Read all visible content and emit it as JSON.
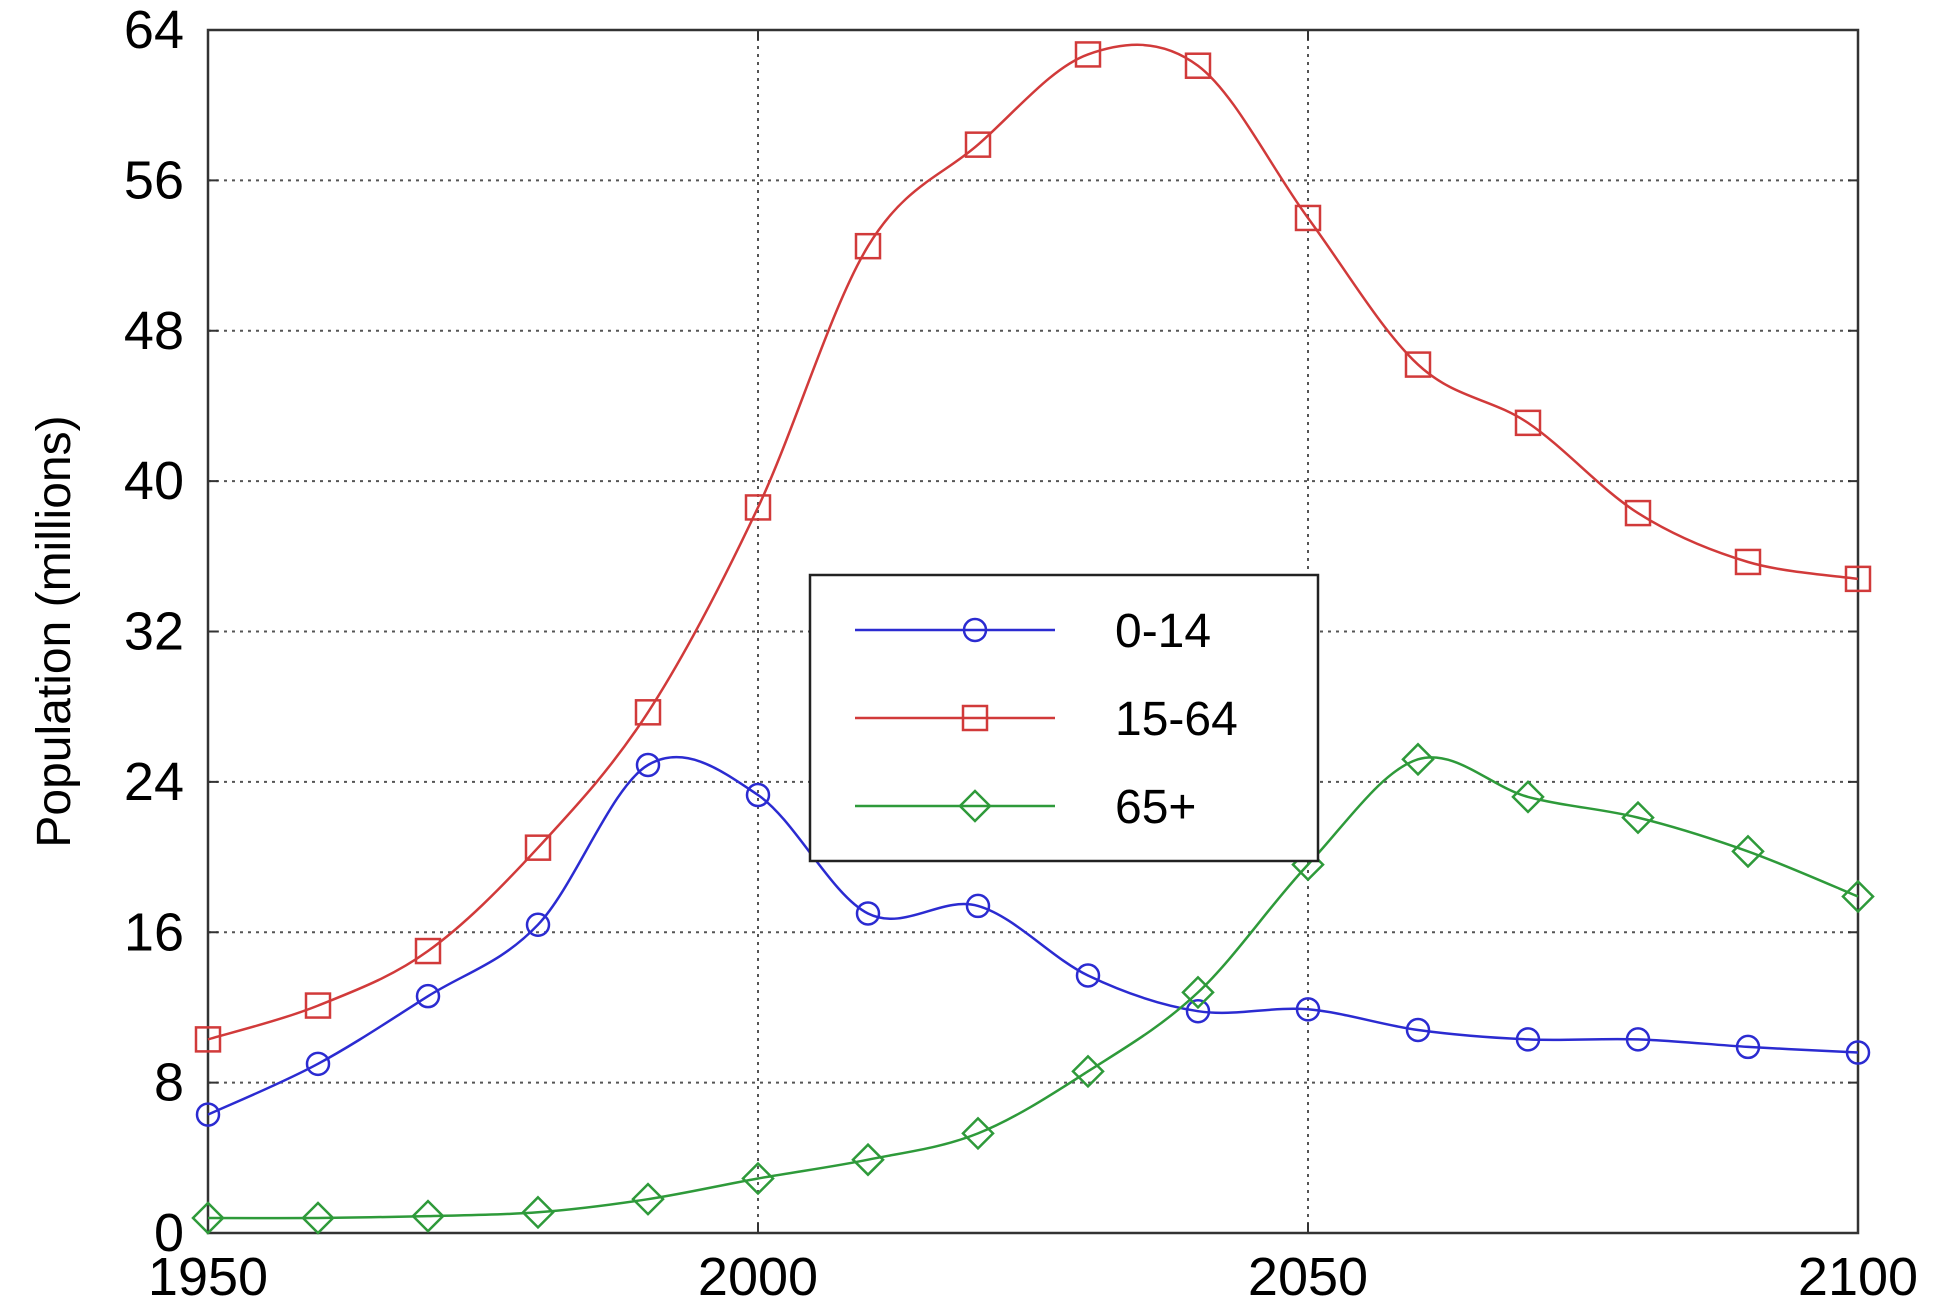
{
  "chart_data": {
    "type": "line",
    "title": "",
    "xlabel": "",
    "ylabel": "Population (millions)",
    "xlim": [
      1950,
      2100
    ],
    "ylim": [
      0,
      64
    ],
    "x_ticks": [
      1950,
      2000,
      2050,
      2100
    ],
    "y_ticks": [
      0,
      8,
      16,
      24,
      32,
      40,
      48,
      56,
      64
    ],
    "grid": true,
    "legend_position": "center",
    "x": [
      1950,
      1960,
      1970,
      1980,
      1990,
      2000,
      2010,
      2020,
      2030,
      2040,
      2050,
      2060,
      2070,
      2080,
      2090,
      2100
    ],
    "series": [
      {
        "name": "0-14",
        "color": "#2b2bd1",
        "marker": "circle",
        "values": [
          6.3,
          9.0,
          12.6,
          16.4,
          24.9,
          23.3,
          17.0,
          17.4,
          13.7,
          11.8,
          11.9,
          10.8,
          10.3,
          10.3,
          9.9,
          9.6
        ]
      },
      {
        "name": "15-64",
        "color": "#d13a3a",
        "marker": "square",
        "values": [
          10.3,
          12.1,
          15.0,
          20.5,
          27.7,
          38.6,
          52.5,
          57.9,
          62.7,
          62.1,
          54.0,
          46.2,
          43.1,
          38.3,
          35.7,
          34.8
        ]
      },
      {
        "name": "65+",
        "color": "#2e9a3a",
        "marker": "diamond",
        "values": [
          0.8,
          0.8,
          0.9,
          1.1,
          1.8,
          2.9,
          3.9,
          5.3,
          8.6,
          12.8,
          19.6,
          25.2,
          23.2,
          22.1,
          20.3,
          17.9
        ]
      }
    ]
  }
}
